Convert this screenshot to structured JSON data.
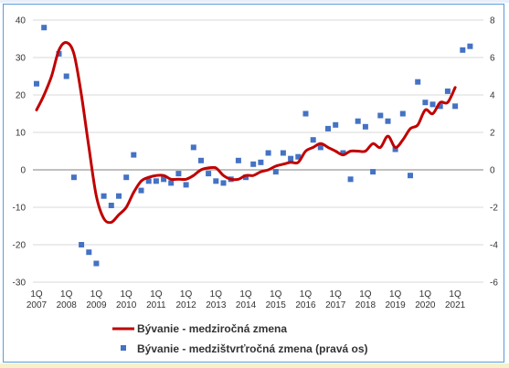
{
  "chart_data": {
    "type": "line",
    "title": "",
    "xlabel": "",
    "ylabel": "",
    "ylim": [
      -30,
      40
    ],
    "y2lim": [
      -6,
      8
    ],
    "left_ticks": [
      "-30",
      "-20",
      "-10",
      "0",
      "10",
      "20",
      "30",
      "40"
    ],
    "right_ticks": [
      "-6",
      "-4",
      "-2",
      "0",
      "2",
      "4",
      "6",
      "8"
    ],
    "x_tick_labels": [
      {
        "q": "1Q",
        "y": "2007"
      },
      {
        "q": "1Q",
        "y": "2008"
      },
      {
        "q": "1Q",
        "y": "2009"
      },
      {
        "q": "1Q",
        "y": "2010"
      },
      {
        "q": "1Q",
        "y": "2011"
      },
      {
        "q": "1Q",
        "y": "2012"
      },
      {
        "q": "1Q",
        "y": "2013"
      },
      {
        "q": "1Q",
        "y": "2014"
      },
      {
        "q": "1Q",
        "y": "2015"
      },
      {
        "q": "1Q",
        "y": "2016"
      },
      {
        "q": "1Q",
        "y": "2017"
      },
      {
        "q": "1Q",
        "y": "2018"
      },
      {
        "q": "1Q",
        "y": "2019"
      },
      {
        "q": "1Q",
        "y": "2020"
      },
      {
        "q": "1Q",
        "y": "2021"
      }
    ],
    "grid": true,
    "legend": "bottom-left",
    "series": [
      {
        "name": "Bývanie - medziročná zmena",
        "type": "line",
        "axis": "left",
        "color": "#c00000",
        "values": [
          16,
          20,
          25,
          32,
          34,
          31,
          20,
          6,
          -7,
          -13,
          -14,
          -12,
          -10,
          -6,
          -3,
          -2,
          -1.5,
          -1.5,
          -2.5,
          -2.5,
          -2.5,
          -1.5,
          0,
          0.5,
          0.5,
          -1.5,
          -2.5,
          -2.5,
          -1.5,
          -1.5,
          -0.5,
          0,
          1,
          1.5,
          2,
          2,
          5,
          6,
          7,
          6,
          5,
          4,
          5,
          5,
          5,
          7,
          6,
          9,
          6,
          8,
          11,
          12,
          16,
          15,
          18,
          18,
          22
        ]
      },
      {
        "name": "Bývanie - medzištvrťročná zmena (pravá os)",
        "type": "scatter",
        "axis": "right",
        "color": "#4472c4",
        "values": [
          4.6,
          7.6,
          null,
          6.2,
          5.0,
          -0.4,
          -4.0,
          -4.4,
          -5.0,
          -1.4,
          -1.9,
          -1.4,
          -0.4,
          0.8,
          -1.1,
          -0.6,
          -0.6,
          -0.5,
          -0.7,
          -0.2,
          -0.8,
          1.2,
          0.5,
          -0.2,
          -0.6,
          -0.7,
          -0.5,
          0.5,
          -0.4,
          0.3,
          0.4,
          0.9,
          -0.1,
          0.9,
          0.6,
          0.7,
          3.0,
          1.6,
          1.2,
          2.2,
          2.4,
          0.9,
          -0.5,
          2.6,
          2.3,
          -0.1,
          2.9,
          2.6,
          1.1,
          3.0,
          -0.3,
          4.7,
          3.6,
          3.5,
          3.4,
          4.2,
          3.4,
          6.4,
          6.6
        ]
      }
    ]
  }
}
